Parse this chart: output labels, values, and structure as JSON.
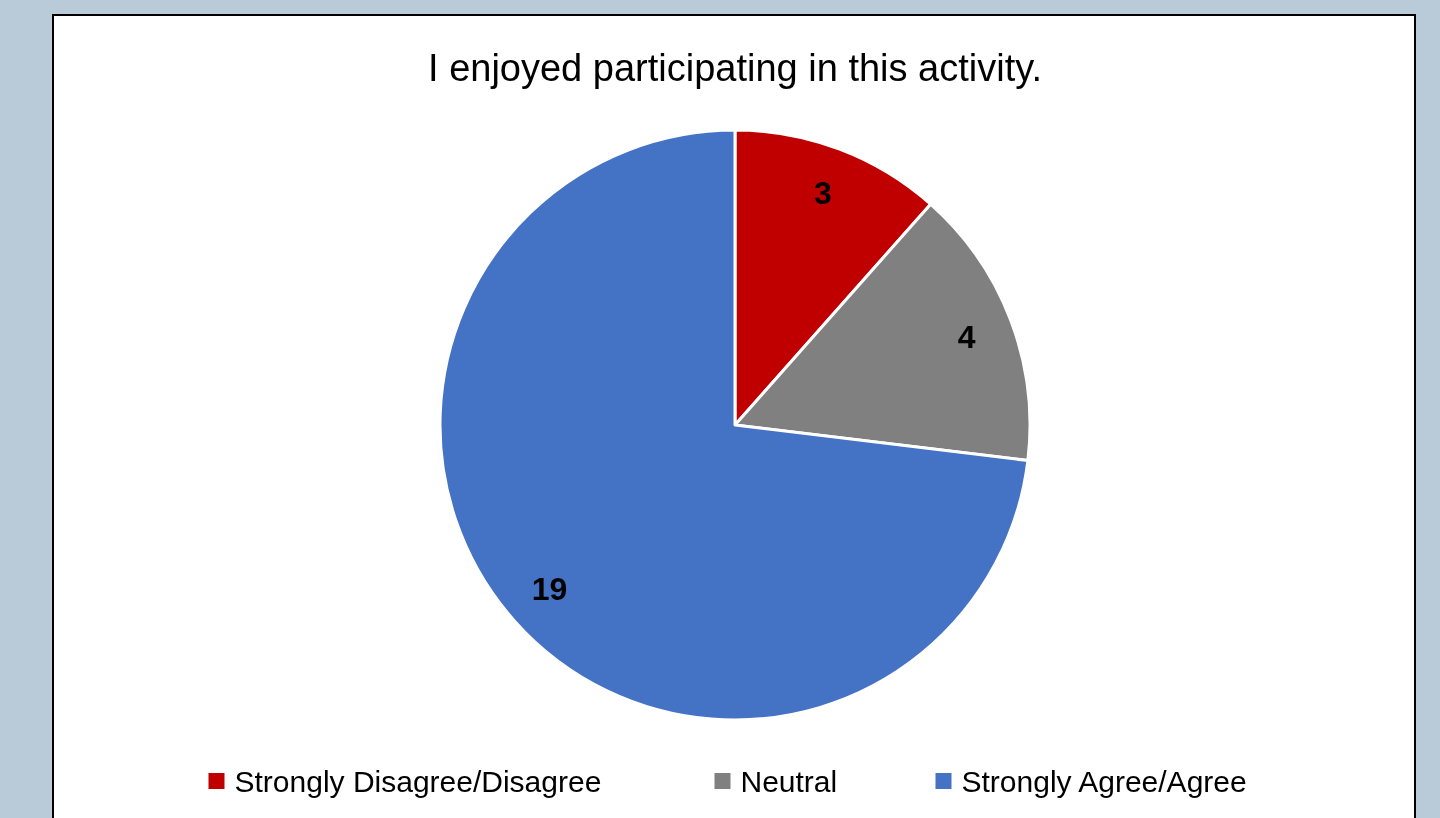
{
  "chart_data": {
    "type": "pie",
    "title": "I enjoyed participating in this activity.",
    "categories": [
      "Strongly Disagree/Disagree",
      "Neutral",
      "Strongly Agree/Agree"
    ],
    "values": [
      3,
      4,
      19
    ],
    "colors": [
      "#c00000",
      "#808080",
      "#4472c4"
    ],
    "data_labels": true,
    "legend": "bottom"
  }
}
